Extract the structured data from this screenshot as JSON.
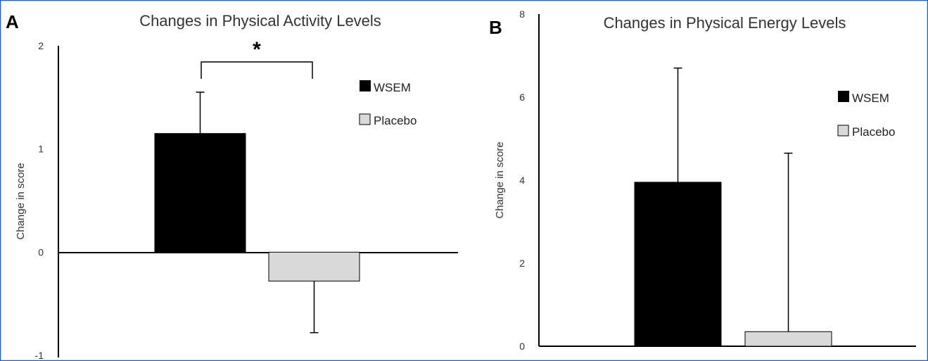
{
  "colors": {
    "border": "#1f5fbf",
    "wsem": "#000000",
    "placebo": "#d9d9d9",
    "axis": "#000000"
  },
  "chart_data": [
    {
      "panel_letter": "A",
      "type": "bar",
      "title": "Changes in Physical Activity Levels",
      "ylabel": "Change in score",
      "xlabel": "",
      "ylim": [
        -1,
        2
      ],
      "yticks": [
        -1,
        0,
        1,
        2
      ],
      "grid": false,
      "legend_position": "top-right",
      "series": [
        {
          "name": "WSEM",
          "value": 1.15,
          "error": 0.4,
          "color": "#000000"
        },
        {
          "name": "Placebo",
          "value": -0.28,
          "error": 0.5,
          "color": "#d9d9d9"
        }
      ],
      "significance": "*"
    },
    {
      "panel_letter": "B",
      "type": "bar",
      "title": "Changes in Physical Energy Levels",
      "ylabel": "Change in score",
      "xlabel": "",
      "ylim": [
        0,
        8
      ],
      "yticks": [
        0,
        2,
        4,
        6,
        8
      ],
      "grid": false,
      "legend_position": "top-right",
      "series": [
        {
          "name": "WSEM",
          "value": 3.95,
          "error": 2.75,
          "color": "#000000"
        },
        {
          "name": "Placebo",
          "value": 0.35,
          "error": 4.3,
          "color": "#d9d9d9"
        }
      ]
    }
  ]
}
